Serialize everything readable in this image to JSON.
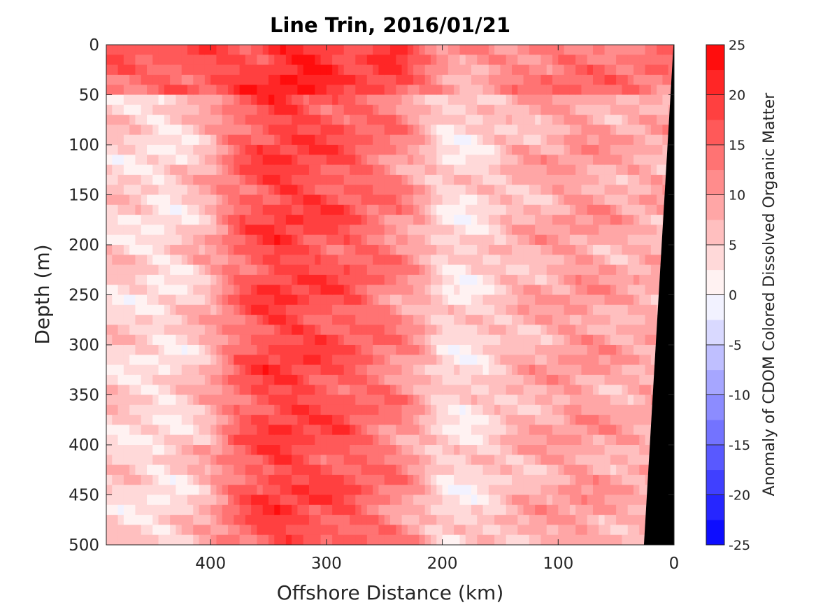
{
  "chart_data": {
    "type": "heatmap",
    "title": "Line Trin, 2016/01/21",
    "xlabel": "Offshore Distance (km)",
    "ylabel": "Depth (m)",
    "xlim": [
      490,
      0
    ],
    "ylim": [
      0,
      500
    ],
    "x_ticks": [
      "400",
      "300",
      "200",
      "100",
      "0"
    ],
    "x_tick_values": [
      400,
      300,
      200,
      100,
      0
    ],
    "y_ticks": [
      "0",
      "50",
      "100",
      "150",
      "200",
      "250",
      "300",
      "350",
      "400",
      "450",
      "500"
    ],
    "y_tick_values": [
      0,
      50,
      100,
      150,
      200,
      250,
      300,
      350,
      400,
      450,
      500
    ],
    "colorbar": {
      "label": "Anomaly of CDOM Colored Dissolved Organic Matter",
      "range": [
        -25,
        25
      ],
      "ticks": [
        "25",
        "20",
        "15",
        "10",
        "5",
        "0",
        "-5",
        "-10",
        "-15",
        "-20",
        "-25"
      ],
      "tick_values": [
        25,
        20,
        15,
        10,
        5,
        0,
        -5,
        -10,
        -15,
        -20,
        -25
      ],
      "levels": [
        -25,
        -22.5,
        -20,
        -17.5,
        -15,
        -12.5,
        -10,
        -7.5,
        -5,
        -2.5,
        0,
        2.5,
        5,
        7.5,
        10,
        12.5,
        15,
        17.5,
        20,
        22.5,
        25
      ]
    },
    "column_anomaly_profile": {
      "distance_km": [
        490,
        460,
        440,
        420,
        400,
        380,
        360,
        340,
        320,
        300,
        280,
        260,
        240,
        220,
        200,
        180,
        160,
        140,
        120,
        100,
        80,
        60,
        40,
        20
      ],
      "surface_0_50m": [
        15,
        14,
        16,
        17,
        17,
        18,
        19,
        21,
        22,
        20,
        17,
        18,
        19,
        14,
        11,
        9,
        10,
        12,
        13,
        14,
        14,
        13,
        13,
        13
      ],
      "interior_50_500m": [
        5,
        4,
        3,
        5,
        8,
        14,
        17,
        19,
        18,
        17,
        16,
        14,
        12,
        9,
        4,
        3,
        5,
        7,
        8,
        9,
        10,
        9,
        8,
        8
      ]
    },
    "seafloor_mask": "black",
    "grid": false,
    "colors": {
      "positive_max": "#ff0000",
      "zero": "#ffffff",
      "negative_max": "#0000ff",
      "mask": "#000000"
    }
  }
}
